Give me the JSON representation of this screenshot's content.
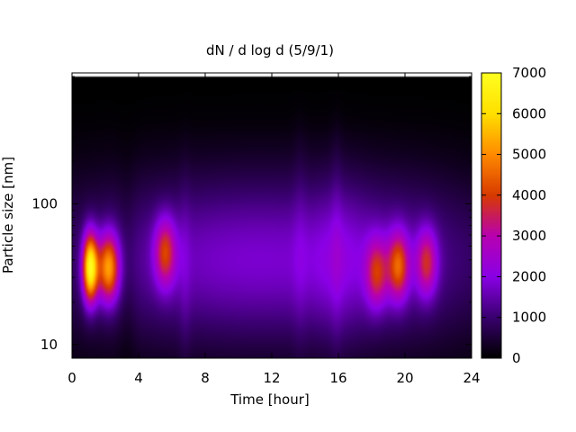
{
  "chart_data": {
    "type": "heatmap",
    "title": "dN / d log d (5/9/1)",
    "xlabel": "Time [hour]",
    "ylabel": "Particle size [nm]",
    "xlim": [
      0,
      24
    ],
    "x_ticks": [
      "0",
      "4",
      "8",
      "12",
      "16",
      "20",
      "24"
    ],
    "x_tick_values": [
      0,
      4,
      8,
      12,
      16,
      20,
      24
    ],
    "y_scale": "log",
    "ylim": [
      8,
      850
    ],
    "y_ticks": [
      "10",
      "100"
    ],
    "y_tick_values": [
      10,
      100
    ],
    "colorbar": {
      "min": 0,
      "max": 7000,
      "ticks": [
        "0",
        "1000",
        "2000",
        "3000",
        "4000",
        "5000",
        "6000",
        "7000"
      ],
      "tick_values": [
        0,
        1000,
        2000,
        3000,
        4000,
        5000,
        6000,
        7000
      ],
      "colormap": [
        "#000000",
        "#3a0070",
        "#8a00e6",
        "#b800b0",
        "#d83a00",
        "#ff8a00",
        "#ffdf00",
        "#ffff20"
      ]
    },
    "features": [
      {
        "time": 1.1,
        "size_nm": 35,
        "value": 6700
      },
      {
        "time": 2.2,
        "size_nm": 35,
        "value": 5000
      },
      {
        "time": 5.6,
        "size_nm": 45,
        "value": 3500
      },
      {
        "time": 18.3,
        "size_nm": 32,
        "value": 3200
      },
      {
        "time": 19.6,
        "size_nm": 36,
        "value": 3900
      },
      {
        "time": 21.3,
        "size_nm": 38,
        "value": 3300
      }
    ],
    "grid": false
  }
}
